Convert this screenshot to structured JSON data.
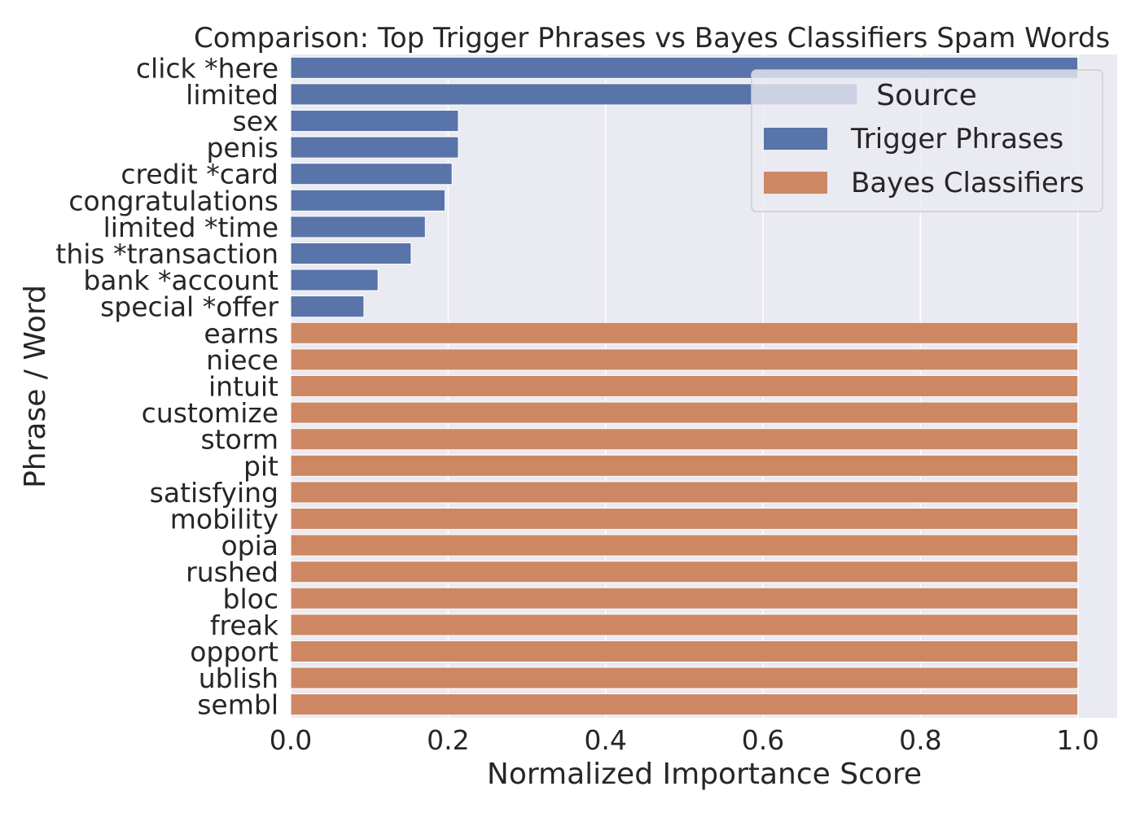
{
  "chart_data": {
    "type": "bar",
    "orientation": "horizontal",
    "title": "Comparison: Top Trigger Phrases vs Bayes Classifiers Spam Words",
    "xlabel": "Normalized Importance Score",
    "ylabel": "Phrase / Word",
    "xlim": [
      0,
      1.05
    ],
    "xticks": [
      0.0,
      0.2,
      0.4,
      0.6,
      0.8,
      1.0
    ],
    "xtick_labels": [
      "0.0",
      "0.2",
      "0.4",
      "0.6",
      "0.8",
      "1.0"
    ],
    "grid": true,
    "legend": {
      "title": "Source",
      "position": "top-right"
    },
    "series": [
      {
        "name": "Trigger Phrases",
        "color": "#5874a8",
        "categories": [
          "click *here",
          "limited",
          "sex",
          "penis",
          "credit *card",
          "congratulations",
          "limited *time",
          "this *transaction",
          "bank *account",
          "special *offer"
        ],
        "values": [
          1.0,
          0.72,
          0.213,
          0.213,
          0.205,
          0.196,
          0.171,
          0.153,
          0.111,
          0.093
        ]
      },
      {
        "name": "Bayes Classifiers",
        "color": "#cd8863",
        "categories": [
          "earns",
          "niece",
          "intuit",
          "customize",
          "storm",
          "pit",
          "satisfying",
          "mobility",
          "opia",
          "rushed",
          "bloc",
          "freak",
          "opport",
          "ublish",
          "sembl"
        ],
        "values": [
          1.0,
          1.0,
          1.0,
          1.0,
          1.0,
          1.0,
          1.0,
          1.0,
          1.0,
          1.0,
          1.0,
          1.0,
          1.0,
          1.0,
          1.0
        ]
      }
    ]
  }
}
